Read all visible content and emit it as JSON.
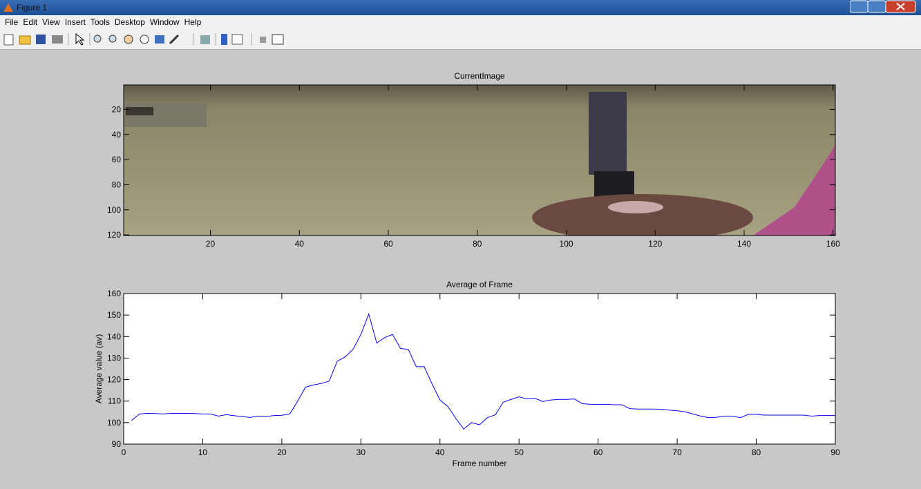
{
  "window": {
    "title": "Figure 1"
  },
  "menu": [
    "File",
    "Edit",
    "View",
    "Insert",
    "Tools",
    "Desktop",
    "Window",
    "Help"
  ],
  "chart_data": [
    {
      "type": "image",
      "title": "CurrentImage",
      "xlim": [
        0.5,
        160.5
      ],
      "ylim": [
        0.5,
        120.5
      ],
      "reverse_y": true,
      "xticks": [
        20,
        40,
        60,
        80,
        100,
        120,
        140,
        160
      ],
      "yticks": [
        20,
        40,
        60,
        80,
        100,
        120
      ]
    },
    {
      "type": "line",
      "title": "Average of Frame",
      "x_label": "Frame number",
      "y_label": "Average value (av)",
      "x": [
        1,
        2,
        3,
        4,
        5,
        6,
        7,
        8,
        9,
        10,
        11,
        12,
        13,
        14,
        15,
        16,
        17,
        18,
        19,
        20,
        21,
        22,
        23,
        24,
        25,
        26,
        27,
        28,
        29,
        30,
        31,
        32,
        33,
        34,
        35,
        36,
        37,
        38,
        39,
        40,
        41,
        42,
        43,
        44,
        45,
        46,
        47,
        48,
        49,
        50,
        51,
        52,
        53,
        54,
        55,
        56,
        57,
        58,
        59,
        60,
        61,
        62,
        63,
        64,
        65,
        66,
        67,
        68,
        69,
        70,
        71,
        72,
        73,
        74,
        75,
        76,
        77,
        78,
        79,
        80,
        81,
        82,
        83,
        84,
        85,
        86,
        87,
        88,
        89,
        90
      ],
      "values": [
        101,
        104,
        104.3,
        104.2,
        104,
        104.3,
        104.3,
        104.3,
        104.2,
        104,
        104,
        103,
        103.7,
        103.2,
        102.8,
        102.4,
        103,
        102.8,
        103.3,
        103.4,
        104,
        110,
        116.5,
        117.5,
        118.2,
        119.3,
        128.5,
        130.5,
        134,
        141,
        150.5,
        137,
        139.5,
        141,
        134.5,
        134,
        126,
        126,
        118,
        110.5,
        107.5,
        102,
        97,
        100,
        99,
        102.3,
        103.6,
        109.5,
        110.8,
        112,
        111,
        111.3,
        109.8,
        110.5,
        110.8,
        110.8,
        111,
        108.8,
        108.5,
        108.5,
        108.5,
        108.3,
        108.3,
        106.5,
        106.3,
        106.3,
        106.3,
        106.2,
        105.8,
        105.5,
        105,
        104,
        103,
        102.3,
        102.5,
        103,
        103,
        102.3,
        103.8,
        103.8,
        103.5,
        103.5,
        103.5,
        103.5,
        103.5,
        103.5,
        103,
        103.3,
        103.3,
        103.3
      ],
      "color": "#0000ff",
      "xlim": [
        0,
        90
      ],
      "ylim": [
        90,
        160
      ],
      "xticks": [
        0,
        10,
        20,
        30,
        40,
        50,
        60,
        70,
        80,
        90
      ],
      "yticks": [
        90,
        100,
        110,
        120,
        130,
        140,
        150,
        160
      ]
    }
  ]
}
